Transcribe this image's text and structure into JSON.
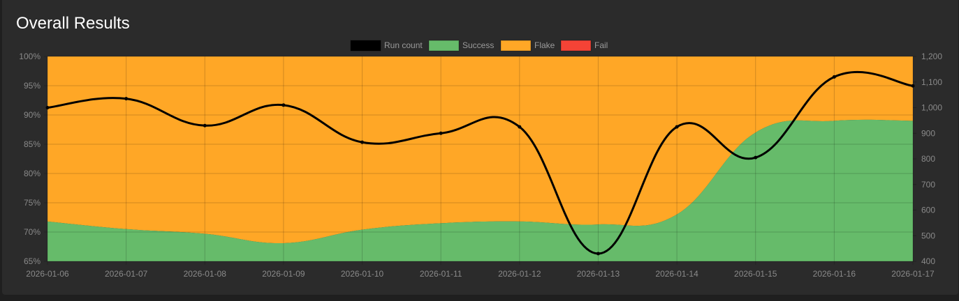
{
  "page": {
    "title": "Overall Results"
  },
  "chart_data": {
    "type": "area",
    "x": [
      "2026-01-06",
      "2026-01-07",
      "2026-01-08",
      "2026-01-09",
      "2026-01-10",
      "2026-01-11",
      "2026-01-12",
      "2026-01-13",
      "2026-01-14",
      "2026-01-15",
      "2026-01-16",
      "2026-01-17"
    ],
    "y_left": {
      "ticks": [
        "100%",
        "95%",
        "90%",
        "85%",
        "80%",
        "75%",
        "70%",
        "65%"
      ],
      "ylim": [
        65,
        100
      ],
      "unit": "%"
    },
    "y_right": {
      "ticks": [
        "1,200",
        "1,100",
        "1,000",
        "900",
        "800",
        "700",
        "600",
        "500",
        "400"
      ],
      "ylim": [
        400,
        1200
      ]
    },
    "legend": {
      "position": "top-center"
    },
    "series": [
      {
        "name": "Run count",
        "axis": "right",
        "type": "line",
        "color": "#000000",
        "values": [
          1000,
          1035,
          930,
          1010,
          865,
          900,
          925,
          430,
          925,
          805,
          1120,
          1085
        ]
      },
      {
        "name": "Success",
        "axis": "left",
        "type": "area",
        "color": "#66bb6a",
        "values": [
          71.8,
          70.5,
          69.7,
          68.1,
          70.4,
          71.5,
          71.8,
          71.3,
          73.0,
          87.0,
          89.0,
          89.0
        ]
      },
      {
        "name": "Flake",
        "axis": "left",
        "type": "area",
        "color": "#ffa726",
        "values": [
          28.2,
          29.5,
          30.3,
          31.9,
          29.6,
          28.5,
          28.2,
          28.7,
          27.0,
          13.0,
          11.0,
          11.0
        ]
      },
      {
        "name": "Fail",
        "axis": "left",
        "type": "area",
        "color": "#f44336",
        "values": [
          0,
          0,
          0,
          0,
          0,
          0,
          0,
          0,
          0,
          0,
          0,
          0
        ]
      }
    ],
    "grid": true
  }
}
